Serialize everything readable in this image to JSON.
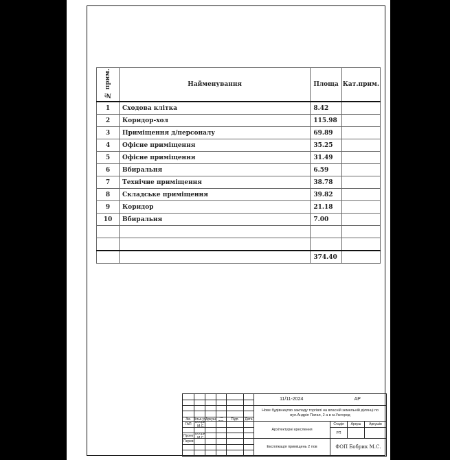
{
  "table": {
    "headers": {
      "num": "№ прим.",
      "name": "Найменування",
      "area": "Площа",
      "category": "Кат.прим."
    },
    "rows": [
      {
        "num": "1",
        "name": "Сходова клітка",
        "area": "8.42"
      },
      {
        "num": "2",
        "name": "Коридор-хол",
        "area": "115.98"
      },
      {
        "num": "3",
        "name": "Приміщення д/персоналу",
        "area": "69.89"
      },
      {
        "num": "4",
        "name": "Офісне приміщення",
        "area": "35.25"
      },
      {
        "num": "5",
        "name": "Офісне приміщення",
        "area": "31.49"
      },
      {
        "num": "6",
        "name": "Вбиральня",
        "area": "6.59"
      },
      {
        "num": "7",
        "name": "Технічне приміщення",
        "area": "38.78"
      },
      {
        "num": "8",
        "name": "Складське приміщення",
        "area": "39.82"
      },
      {
        "num": "9",
        "name": "Коридор",
        "area": "21.18"
      },
      {
        "num": "10",
        "name": "Вбиральня",
        "area": "7.00"
      }
    ],
    "total": "374.40"
  },
  "title_block": {
    "date": "11/11-2024",
    "code": "АР",
    "project": "Нове будівництво закладу торгівлі на власній земельній ділянці по вул.Андрія Патая, 2 а в м.Ужгород",
    "cols": [
      "Зм.",
      "Кільк.уч",
      "Аркуш",
      "№ док.",
      "Підп.",
      "Дата"
    ],
    "gap": "ГАП",
    "gap_name": "Бобрик М.С.",
    "designer": "Проектув.",
    "designer_name": "Бобрик М.С.",
    "checker": "Перевір.",
    "section": "Архітектурні креслення",
    "stage_label": "Стадія",
    "sheet_label": "Аркуш",
    "sheets_label": "Аркушів",
    "stage": "РП",
    "sheet_title": "Експлікація приміщень 2 пов",
    "company": "ФОП Бобрик М.С."
  }
}
